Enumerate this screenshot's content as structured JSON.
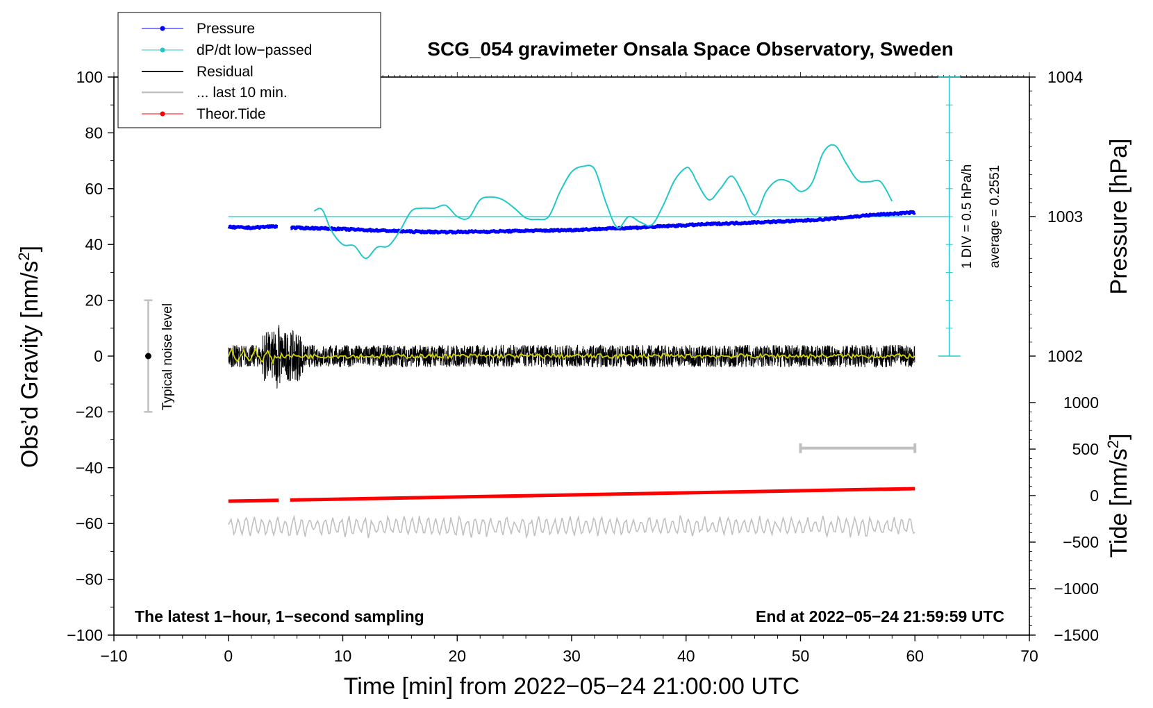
{
  "chart_data": {
    "type": "line",
    "title": "SCG_054 gravimeter Onsala Space Observatory, Sweden",
    "xlabel": "Time [min] from 2022−05−24 21:00:00 UTC",
    "ylabel": "Obs’d Gravity [nm/s",
    "ylabel_sup": "2",
    "ylabel_end": "]",
    "xlim": [
      -10,
      70
    ],
    "ylim": [
      -100,
      100
    ],
    "xticks": [
      -10,
      0,
      10,
      20,
      30,
      40,
      50,
      60,
      70
    ],
    "xtick_labels": [
      "−10",
      "0",
      "10",
      "20",
      "30",
      "40",
      "50",
      "60",
      "70"
    ],
    "yticks": [
      -100,
      -80,
      -60,
      -40,
      -20,
      0,
      20,
      40,
      60,
      80,
      100
    ],
    "ytick_labels": [
      "−100",
      "−80",
      "−60",
      "−40",
      "−20",
      "0",
      "20",
      "40",
      "60",
      "80",
      "100"
    ],
    "pressure_axis": {
      "label": "Pressure [hPa]",
      "ticks": [
        1002,
        1003,
        1004
      ],
      "tick_labels": [
        "1002",
        "1003",
        "1004"
      ],
      "map": {
        "value_at_left_50": 1003,
        "left_units_per_hPa": 50
      }
    },
    "tide_axis": {
      "label": "Tide [nm/s",
      "label_sup": "2",
      "label_end": "]",
      "ticks": [
        1000,
        500,
        0,
        -500,
        -1000,
        -1500
      ],
      "tick_labels": [
        "1000",
        "500",
        "0",
        "−500",
        "−1000",
        "−1500"
      ],
      "map": {
        "value_at_left_minus_100": -1500,
        "left_units_per_500": 16.6667
      }
    },
    "legend": {
      "position": "top-left",
      "entries": [
        "Pressure",
        "dP/dt low−passed",
        "Residual",
        "... last 10 min.",
        "Theor.Tide"
      ]
    },
    "annotations": {
      "noise_label": "Typical noise level",
      "noise_range": [
        -20,
        20
      ],
      "noise_x": -7,
      "dpdt_scale": "1 DIV = 0.5 hPa/h",
      "dpdt_average": "average = 0.2551",
      "dpdt_axis_x": 63,
      "dpdt_axis_range": [
        0,
        100
      ],
      "window_bar": [
        50,
        60
      ],
      "window_bar_y": -33,
      "bottom_left": "The latest 1−hour, 1−second sampling",
      "bottom_right": "End at 2022−05−24 21:59:59 UTC"
    },
    "series": [
      {
        "name": "Pressure",
        "color": "#0000ff",
        "gaps": [
          [
            4.4,
            5.4
          ]
        ],
        "x": [
          0,
          2,
          4,
          5.5,
          8,
          10,
          12,
          14,
          16,
          18,
          20,
          22,
          24,
          26,
          28,
          30,
          32,
          34,
          36,
          38,
          40,
          42,
          44,
          46,
          48,
          50,
          52,
          54,
          56,
          58,
          60
        ],
        "y": [
          46.2,
          46.0,
          46.5,
          46.0,
          45.8,
          45.5,
          45.2,
          44.9,
          44.6,
          44.5,
          44.5,
          44.6,
          44.7,
          44.9,
          45.0,
          45.2,
          45.5,
          45.8,
          46.1,
          46.5,
          46.9,
          47.3,
          47.6,
          47.9,
          48.2,
          48.5,
          49.0,
          49.7,
          50.5,
          51.0,
          51.5
        ]
      },
      {
        "name": "dP/dt low−passed",
        "color": "#22c8c8",
        "baseline": 50,
        "x": [
          7.5,
          8.2,
          9,
          10,
          11,
          12,
          13,
          14,
          15,
          16,
          17,
          18,
          19,
          20,
          21,
          22,
          23,
          24,
          25,
          26,
          27,
          28,
          29,
          30,
          31,
          32,
          33,
          34,
          35,
          36,
          37,
          38,
          39,
          40,
          40.5,
          41,
          42,
          43,
          44,
          45,
          46,
          47,
          48,
          49,
          50,
          51,
          52,
          53,
          54,
          55,
          56,
          57,
          58
        ],
        "y": [
          52,
          52.5,
          45,
          40,
          39.5,
          35,
          39,
          39.5,
          45,
          52,
          53,
          53,
          54,
          50,
          49.5,
          56,
          57,
          56,
          53,
          49.5,
          49,
          50,
          59,
          66,
          68,
          67,
          55,
          46,
          50,
          48,
          47,
          54,
          63,
          67.5,
          66,
          62,
          56,
          60,
          64.5,
          58,
          50.5,
          59,
          63,
          62.5,
          59,
          62,
          73,
          75.5,
          69,
          63,
          62.5,
          62.5,
          55.5
        ]
      },
      {
        "name": "Residual",
        "color": "#000000",
        "center": 0,
        "amplitude": 4,
        "x_range": [
          0,
          60
        ]
      },
      {
        "name": "... last 10 min.",
        "color": "#c0c0c0",
        "center": -61,
        "amplitude": 3,
        "x_range": [
          0,
          60
        ]
      },
      {
        "name": "Theor.Tide",
        "color": "#ff0000",
        "gaps": [
          [
            4.4,
            5.4
          ]
        ],
        "x": [
          0,
          60
        ],
        "y": [
          -52,
          -47.5
        ]
      }
    ]
  }
}
